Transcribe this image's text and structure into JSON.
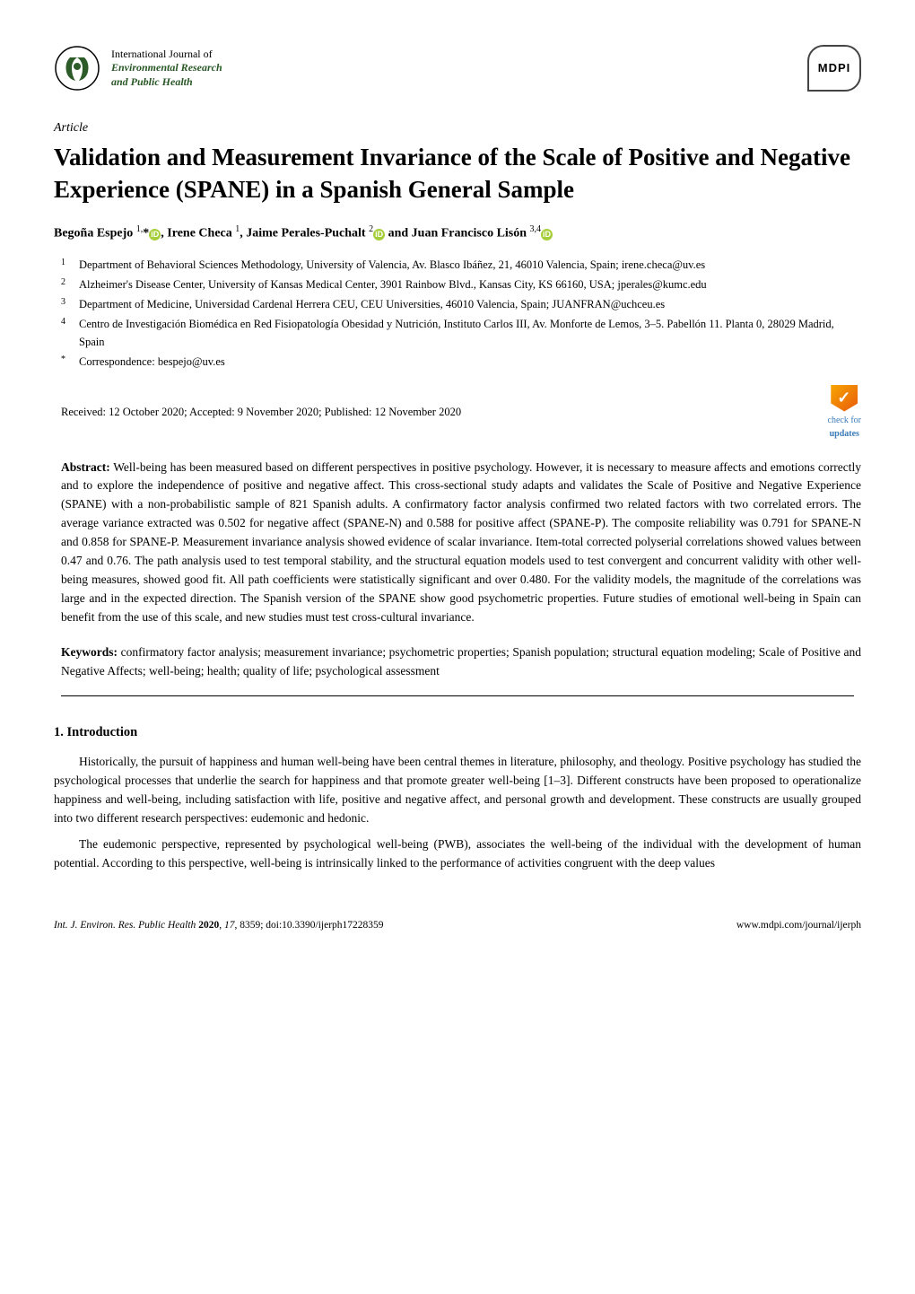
{
  "journal": {
    "top_line": "International Journal of",
    "main_line_1": "Environmental Research",
    "main_line_2": "and Public Health"
  },
  "publisher": "MDPI",
  "article_type": "Article",
  "title": "Validation and Measurement Invariance of the Scale of Positive and Negative Experience (SPANE) in a Spanish General Sample",
  "authors_html": "Begoña Espejo <sup>1,</sup>*<span class=\"orcid\">iD</span>, Irene Checa <sup>1</sup>, Jaime Perales-Puchalt <sup>2</sup><span class=\"orcid\">iD</span> and Juan Francisco Lisón <sup>3,4</sup><span class=\"orcid\">iD</span>",
  "affiliations": [
    {
      "num": "1",
      "text": "Department of Behavioral Sciences Methodology, University of Valencia, Av. Blasco Ibáñez, 21, 46010 Valencia, Spain; irene.checa@uv.es"
    },
    {
      "num": "2",
      "text": "Alzheimer's Disease Center, University of Kansas Medical Center, 3901 Rainbow Blvd., Kansas City, KS 66160, USA; jperales@kumc.edu"
    },
    {
      "num": "3",
      "text": "Department of Medicine, Universidad Cardenal Herrera CEU, CEU Universities, 46010 Valencia, Spain; JUANFRAN@uchceu.es"
    },
    {
      "num": "4",
      "text": "Centro de Investigación Biomédica en Red Fisiopatología Obesidad y Nutrición, Instituto Carlos III, Av. Monforte de Lemos, 3–5. Pabellón 11. Planta 0, 28029 Madrid, Spain"
    },
    {
      "num": "*",
      "text": "Correspondence: bespejo@uv.es"
    }
  ],
  "dates": "Received: 12 October 2020; Accepted: 9 November 2020; Published: 12 November 2020",
  "check_updates": {
    "line1": "check for",
    "line2": "updates"
  },
  "abstract_label": "Abstract:",
  "abstract": " Well-being has been measured based on different perspectives in positive psychology. However, it is necessary to measure affects and emotions correctly and to explore the independence of positive and negative affect. This cross-sectional study adapts and validates the Scale of Positive and Negative Experience (SPANE) with a non-probabilistic sample of 821 Spanish adults. A confirmatory factor analysis confirmed two related factors with two correlated errors. The average variance extracted was 0.502 for negative affect (SPANE-N) and 0.588 for positive affect (SPANE-P). The composite reliability was 0.791 for SPANE-N and 0.858 for SPANE-P. Measurement invariance analysis showed evidence of scalar invariance. Item-total corrected polyserial correlations showed values between 0.47 and 0.76. The path analysis used to test temporal stability, and the structural equation models used to test convergent and concurrent validity with other well-being measures, showed good fit. All path coefficients were statistically significant and over 0.480. For the validity models, the magnitude of the correlations was large and in the expected direction. The Spanish version of the SPANE show good psychometric properties. Future studies of emotional well-being in Spain can benefit from the use of this scale, and new studies must test cross-cultural invariance.",
  "keywords_label": "Keywords:",
  "keywords": " confirmatory factor analysis; measurement invariance; psychometric properties; Spanish population; structural equation modeling; Scale of Positive and Negative Affects; well-being; health; quality of life; psychological assessment",
  "section_heading": "1. Introduction",
  "paragraphs": [
    "Historically, the pursuit of happiness and human well-being have been central themes in literature, philosophy, and theology. Positive psychology has studied the psychological processes that underlie the search for happiness and that promote greater well-being [1–3]. Different constructs have been proposed to operationalize happiness and well-being, including satisfaction with life, positive and negative affect, and personal growth and development. These constructs are usually grouped into two different research perspectives: eudemonic and hedonic.",
    "The eudemonic perspective, represented by psychological well-being (PWB), associates the well-being of the individual with the development of human potential. According to this perspective, well-being is intrinsically linked to the performance of activities congruent with the deep values"
  ],
  "footer": {
    "journal_abbrev": "Int. J. Environ. Res. Public Health",
    "year": "2020",
    "volume": "17",
    "article_num": "8359",
    "doi": "doi:10.3390/ijerph17228359",
    "url": "www.mdpi.com/journal/ijerph"
  }
}
